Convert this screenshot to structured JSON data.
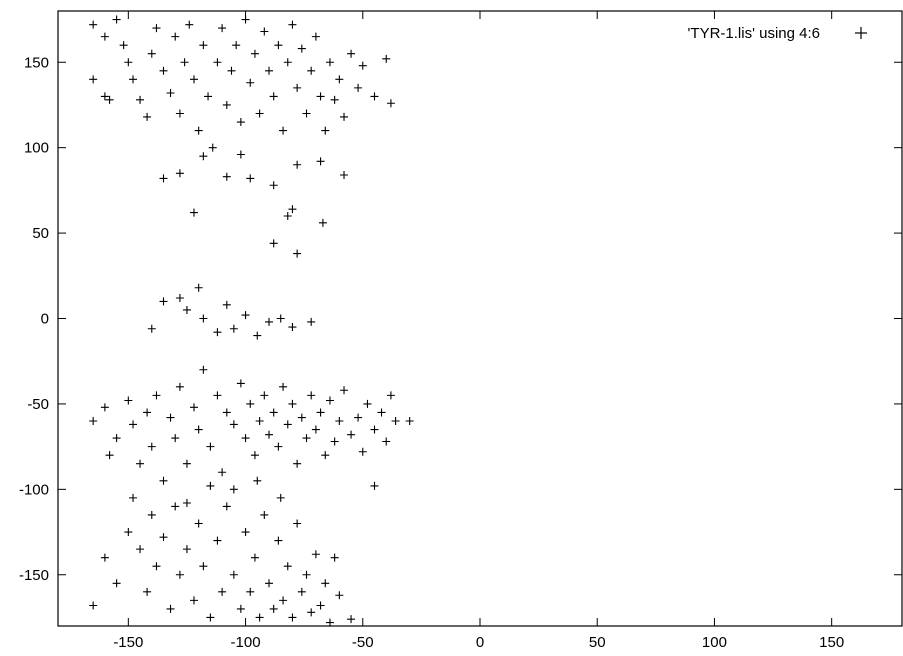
{
  "chart_data": {
    "type": "scatter",
    "marker": "+",
    "marker_color": "#000000",
    "background": "#ffffff",
    "grid": false,
    "legend_position": "top-right",
    "xlim": [
      -180,
      180
    ],
    "ylim": [
      -180,
      180
    ],
    "x_ticks": [
      -150,
      -100,
      -50,
      0,
      50,
      100,
      150
    ],
    "y_ticks": [
      -150,
      -100,
      -50,
      0,
      50,
      100,
      150
    ],
    "x_tick_labels": [
      "-150",
      "-100",
      "-50",
      "0",
      "50",
      "100",
      "150"
    ],
    "y_tick_labels": [
      "-150",
      "-100",
      "-50",
      "0",
      "50",
      "100",
      "150"
    ],
    "series": [
      {
        "name": "'TYR-1.lis' using 4:6",
        "points": [
          [
            -165,
            172
          ],
          [
            -160,
            165
          ],
          [
            -155,
            175
          ],
          [
            -152,
            160
          ],
          [
            -150,
            150
          ],
          [
            -148,
            140
          ],
          [
            -145,
            128
          ],
          [
            -142,
            118
          ],
          [
            -140,
            155
          ],
          [
            -138,
            170
          ],
          [
            -135,
            145
          ],
          [
            -132,
            132
          ],
          [
            -130,
            165
          ],
          [
            -128,
            120
          ],
          [
            -126,
            150
          ],
          [
            -124,
            172
          ],
          [
            -122,
            140
          ],
          [
            -120,
            110
          ],
          [
            -118,
            160
          ],
          [
            -116,
            130
          ],
          [
            -114,
            100
          ],
          [
            -112,
            150
          ],
          [
            -110,
            170
          ],
          [
            -108,
            125
          ],
          [
            -106,
            145
          ],
          [
            -104,
            160
          ],
          [
            -102,
            115
          ],
          [
            -100,
            175
          ],
          [
            -98,
            138
          ],
          [
            -96,
            155
          ],
          [
            -94,
            120
          ],
          [
            -92,
            168
          ],
          [
            -90,
            145
          ],
          [
            -88,
            130
          ],
          [
            -86,
            160
          ],
          [
            -84,
            110
          ],
          [
            -82,
            150
          ],
          [
            -80,
            172
          ],
          [
            -78,
            135
          ],
          [
            -76,
            158
          ],
          [
            -74,
            120
          ],
          [
            -72,
            145
          ],
          [
            -70,
            165
          ],
          [
            -68,
            130
          ],
          [
            -66,
            110
          ],
          [
            -64,
            150
          ],
          [
            -62,
            128
          ],
          [
            -60,
            140
          ],
          [
            -58,
            118
          ],
          [
            -55,
            155
          ],
          [
            -52,
            135
          ],
          [
            -50,
            148
          ],
          [
            -45,
            130
          ],
          [
            -40,
            152
          ],
          [
            -38,
            126
          ],
          [
            -165,
            140
          ],
          [
            -160,
            130
          ],
          [
            -158,
            128
          ],
          [
            -135,
            82
          ],
          [
            -128,
            85
          ],
          [
            -118,
            95
          ],
          [
            -108,
            83
          ],
          [
            -98,
            82
          ],
          [
            -88,
            78
          ],
          [
            -78,
            90
          ],
          [
            -68,
            92
          ],
          [
            -58,
            84
          ],
          [
            -102,
            96
          ],
          [
            -122,
            62
          ],
          [
            -80,
            64
          ],
          [
            -82,
            60
          ],
          [
            -67,
            56
          ],
          [
            -88,
            44
          ],
          [
            -78,
            38
          ],
          [
            -120,
            18
          ],
          [
            -128,
            12
          ],
          [
            -135,
            10
          ],
          [
            -125,
            5
          ],
          [
            -118,
            0
          ],
          [
            -140,
            -6
          ],
          [
            -108,
            8
          ],
          [
            -100,
            2
          ],
          [
            -90,
            -2
          ],
          [
            -85,
            0
          ],
          [
            -80,
            -5
          ],
          [
            -72,
            -2
          ],
          [
            -95,
            -10
          ],
          [
            -105,
            -6
          ],
          [
            -112,
            -8
          ],
          [
            -165,
            -60
          ],
          [
            -160,
            -52
          ],
          [
            -158,
            -80
          ],
          [
            -155,
            -70
          ],
          [
            -150,
            -48
          ],
          [
            -148,
            -62
          ],
          [
            -145,
            -85
          ],
          [
            -142,
            -55
          ],
          [
            -140,
            -75
          ],
          [
            -138,
            -45
          ],
          [
            -135,
            -95
          ],
          [
            -132,
            -58
          ],
          [
            -130,
            -70
          ],
          [
            -128,
            -40
          ],
          [
            -125,
            -85
          ],
          [
            -122,
            -52
          ],
          [
            -120,
            -65
          ],
          [
            -118,
            -30
          ],
          [
            -115,
            -75
          ],
          [
            -112,
            -45
          ],
          [
            -110,
            -90
          ],
          [
            -108,
            -55
          ],
          [
            -105,
            -62
          ],
          [
            -102,
            -38
          ],
          [
            -100,
            -70
          ],
          [
            -98,
            -50
          ],
          [
            -96,
            -80
          ],
          [
            -94,
            -60
          ],
          [
            -92,
            -45
          ],
          [
            -90,
            -68
          ],
          [
            -88,
            -55
          ],
          [
            -86,
            -75
          ],
          [
            -84,
            -40
          ],
          [
            -82,
            -62
          ],
          [
            -80,
            -50
          ],
          [
            -78,
            -85
          ],
          [
            -76,
            -58
          ],
          [
            -74,
            -70
          ],
          [
            -72,
            -45
          ],
          [
            -70,
            -65
          ],
          [
            -68,
            -55
          ],
          [
            -66,
            -80
          ],
          [
            -64,
            -48
          ],
          [
            -62,
            -72
          ],
          [
            -60,
            -60
          ],
          [
            -58,
            -42
          ],
          [
            -55,
            -68
          ],
          [
            -52,
            -58
          ],
          [
            -50,
            -78
          ],
          [
            -48,
            -50
          ],
          [
            -45,
            -65
          ],
          [
            -42,
            -55
          ],
          [
            -40,
            -72
          ],
          [
            -38,
            -45
          ],
          [
            -36,
            -60
          ],
          [
            -30,
            -60
          ],
          [
            -45,
            -98
          ],
          [
            -165,
            -168
          ],
          [
            -160,
            -140
          ],
          [
            -155,
            -155
          ],
          [
            -150,
            -125
          ],
          [
            -148,
            -105
          ],
          [
            -145,
            -135
          ],
          [
            -142,
            -160
          ],
          [
            -140,
            -115
          ],
          [
            -138,
            -145
          ],
          [
            -135,
            -128
          ],
          [
            -132,
            -170
          ],
          [
            -130,
            -110
          ],
          [
            -128,
            -150
          ],
          [
            -125,
            -135
          ],
          [
            -122,
            -165
          ],
          [
            -120,
            -120
          ],
          [
            -118,
            -145
          ],
          [
            -115,
            -175
          ],
          [
            -112,
            -130
          ],
          [
            -110,
            -160
          ],
          [
            -108,
            -110
          ],
          [
            -105,
            -150
          ],
          [
            -102,
            -170
          ],
          [
            -100,
            -125
          ],
          [
            -98,
            -160
          ],
          [
            -96,
            -140
          ],
          [
            -94,
            -175
          ],
          [
            -92,
            -115
          ],
          [
            -90,
            -155
          ],
          [
            -88,
            -170
          ],
          [
            -86,
            -130
          ],
          [
            -84,
            -165
          ],
          [
            -82,
            -145
          ],
          [
            -80,
            -175
          ],
          [
            -78,
            -120
          ],
          [
            -76,
            -160
          ],
          [
            -74,
            -150
          ],
          [
            -72,
            -172
          ],
          [
            -70,
            -138
          ],
          [
            -68,
            -168
          ],
          [
            -66,
            -155
          ],
          [
            -64,
            -178
          ],
          [
            -60,
            -162
          ],
          [
            -55,
            -176
          ],
          [
            -62,
            -140
          ],
          [
            -85,
            -105
          ],
          [
            -95,
            -95
          ],
          [
            -105,
            -100
          ],
          [
            -115,
            -98
          ],
          [
            -125,
            -108
          ]
        ]
      }
    ]
  }
}
